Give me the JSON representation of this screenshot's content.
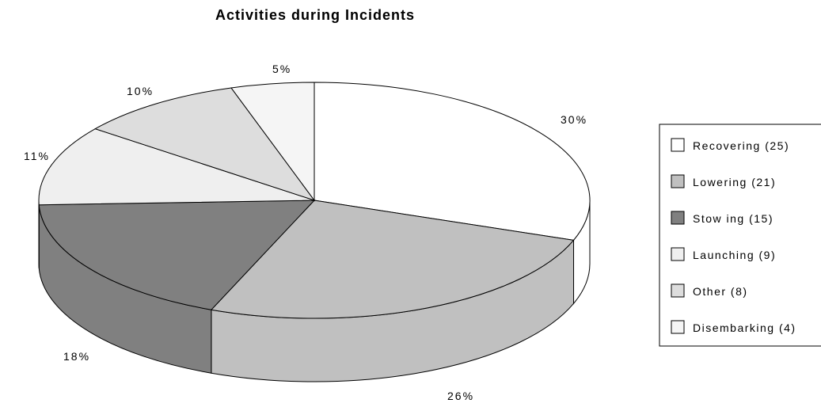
{
  "chart_data": {
    "type": "pie",
    "title": "Activities during Incidents",
    "slices": [
      {
        "label": "Recovering",
        "legend": "Recovering (25)",
        "count": 25,
        "percent_label": "30%",
        "color": "#ffffff",
        "side_color": "#ffffff"
      },
      {
        "label": "Lowering",
        "legend": "Lowering (21)",
        "count": 21,
        "percent_label": "26%",
        "color": "#c0c0c0",
        "side_color": "#c0c0c0"
      },
      {
        "label": "Stowing",
        "legend": "Stow ing (15)",
        "count": 15,
        "percent_label": "18%",
        "color": "#808080",
        "side_color": "#808080"
      },
      {
        "label": "Launching",
        "legend": "Launching (9)",
        "count": 9,
        "percent_label": "11%",
        "color": "#efefef",
        "side_color": "#efefef"
      },
      {
        "label": "Other",
        "legend": "Other (8)",
        "count": 8,
        "percent_label": "10%",
        "color": "#dddddd",
        "side_color": "#dddddd"
      },
      {
        "label": "Disembarking",
        "legend": "Disembarking (4)",
        "count": 4,
        "percent_label": "5%",
        "color": "#f5f5f5",
        "side_color": "#f5f5f5"
      }
    ],
    "legend_position": "right",
    "three_d": true
  }
}
